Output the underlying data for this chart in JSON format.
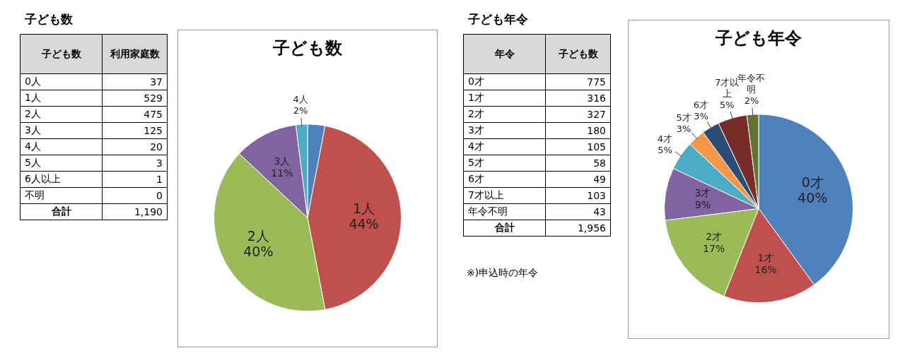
{
  "chart_data": [
    {
      "type": "heatmap",
      "title": "子ども数",
      "ylabel": "子ども数",
      "categories": [
        "利用家庭数"
      ],
      "y_categories": [
        "0人",
        "1人",
        "2人",
        "3人",
        "4人",
        "5人",
        "6人以上",
        "不明"
      ],
      "cells": [
        [
          37
        ],
        [
          529
        ],
        [
          475
        ],
        [
          125
        ],
        [
          20
        ],
        [
          3
        ],
        [
          1
        ],
        [
          0
        ]
      ],
      "data_labels": true,
      "annotations": [
        "合計",
        "1,190"
      ]
    },
    {
      "type": "pie",
      "title": "子ども数",
      "categories": [
        null,
        "1人",
        "2人",
        "3人",
        "4人",
        null,
        null,
        null
      ],
      "values": [
        3,
        44,
        40,
        11,
        2,
        0,
        0,
        0
      ],
      "colors": [
        "#4f81bd",
        "#c0504d",
        "#9bbb59",
        "#8064a2",
        "#4bacc6",
        "#f79646",
        "#2c4d75",
        "#772c2a"
      ],
      "value_labels": [
        null,
        "44%",
        "40%",
        "11%",
        "2%",
        null,
        null,
        null
      ],
      "legend": false
    },
    {
      "type": "heatmap",
      "title": "子ども年令",
      "ylabel": "年令",
      "categories": [
        "子ども数"
      ],
      "y_categories": [
        "0才",
        "1才",
        "2才",
        "3才",
        "4才",
        "5才",
        "6才",
        "7才以上",
        "年令不明"
      ],
      "cells": [
        [
          775
        ],
        [
          316
        ],
        [
          327
        ],
        [
          180
        ],
        [
          105
        ],
        [
          58
        ],
        [
          49
        ],
        [
          103
        ],
        [
          43
        ]
      ],
      "data_labels": true,
      "annotations": [
        "合計",
        "1,956",
        "※)申込時の年令"
      ]
    },
    {
      "type": "pie",
      "title": "子ども年令",
      "categories": [
        "0才",
        "1才",
        "2才",
        "3才",
        "4才",
        "5才",
        "6才",
        "7才以上",
        "年令不明"
      ],
      "values": [
        40,
        16,
        17,
        9,
        5,
        3,
        3,
        5,
        2
      ],
      "colors": [
        "#4f81bd",
        "#c0504d",
        "#9bbb59",
        "#8064a2",
        "#4bacc6",
        "#f79646",
        "#2c4d75",
        "#772c2a",
        "#5f7530"
      ],
      "value_labels": [
        "40%",
        "16%",
        "17%",
        "9%",
        "5%",
        "3%",
        "3%",
        "5%",
        "2%"
      ],
      "legend": false
    }
  ]
}
